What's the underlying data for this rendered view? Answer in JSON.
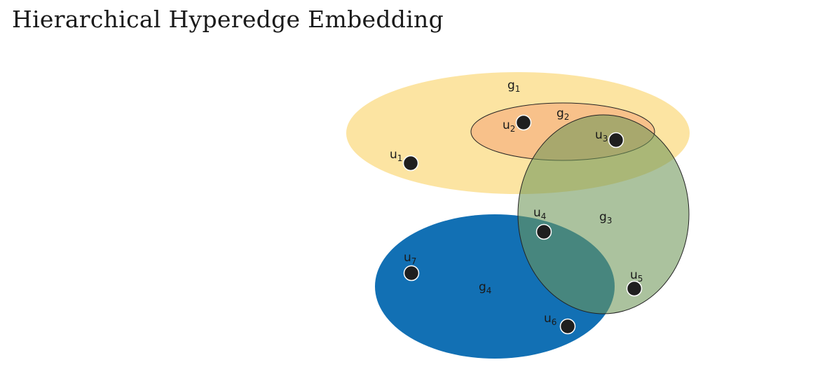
{
  "title": "Hierarchical Hyperedge Embedding",
  "hyperedges": [
    {
      "id": "g1",
      "base": "g",
      "sub": "1",
      "color": "#fce29a"
    },
    {
      "id": "g2",
      "base": "g",
      "sub": "2",
      "color": "#f7bb86"
    },
    {
      "id": "g3",
      "base": "g",
      "sub": "3",
      "color": "#95b27f"
    },
    {
      "id": "g4",
      "base": "g",
      "sub": "4",
      "color": "#1270b4"
    }
  ],
  "nodes": [
    {
      "id": "u1",
      "base": "u",
      "sub": "1"
    },
    {
      "id": "u2",
      "base": "u",
      "sub": "2"
    },
    {
      "id": "u3",
      "base": "u",
      "sub": "3"
    },
    {
      "id": "u4",
      "base": "u",
      "sub": "4"
    },
    {
      "id": "u5",
      "base": "u",
      "sub": "5"
    },
    {
      "id": "u6",
      "base": "u",
      "sub": "6"
    },
    {
      "id": "u7",
      "base": "u",
      "sub": "7"
    }
  ],
  "node_color": "#1f1f1f"
}
